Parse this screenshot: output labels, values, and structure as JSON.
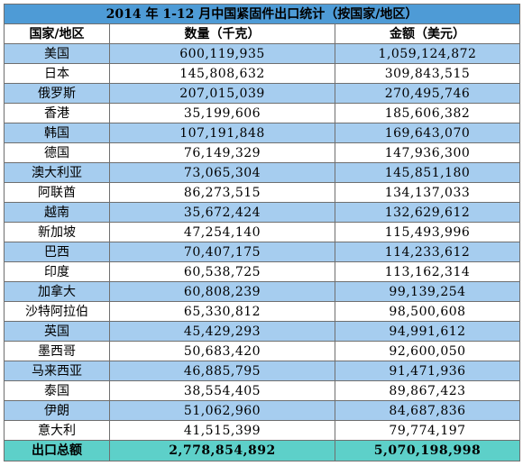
{
  "title": "2014 年 1-12 月中国紧固件出口统计（按国家/地区）",
  "headers": {
    "country": "国家/地区",
    "quantity": "数量（千克）",
    "amount": "金额（美元）"
  },
  "rows": [
    {
      "country": "美国",
      "quantity": "600,119,935",
      "amount": "1,059,124,872"
    },
    {
      "country": "日本",
      "quantity": "145,808,632",
      "amount": "309,843,515"
    },
    {
      "country": "俄罗斯",
      "quantity": "207,015,039",
      "amount": "270,495,746"
    },
    {
      "country": "香港",
      "quantity": "35,199,606",
      "amount": "185,606,382"
    },
    {
      "country": "韩国",
      "quantity": "107,191,848",
      "amount": "169,643,070"
    },
    {
      "country": "德国",
      "quantity": "76,149,329",
      "amount": "147,936,300"
    },
    {
      "country": "澳大利亚",
      "quantity": "73,065,304",
      "amount": "145,851,180"
    },
    {
      "country": "阿联酋",
      "quantity": "86,273,515",
      "amount": "134,137,033"
    },
    {
      "country": "越南",
      "quantity": "35,672,424",
      "amount": "132,629,612"
    },
    {
      "country": "新加坡",
      "quantity": "47,254,140",
      "amount": "115,493,996"
    },
    {
      "country": "巴西",
      "quantity": "70,407,175",
      "amount": "114,233,612"
    },
    {
      "country": "印度",
      "quantity": "60,538,725",
      "amount": "113,162,314"
    },
    {
      "country": "加拿大",
      "quantity": "60,808,239",
      "amount": "99,139,254"
    },
    {
      "country": "沙特阿拉伯",
      "quantity": "65,330,812",
      "amount": "98,500,608"
    },
    {
      "country": "英国",
      "quantity": "45,429,293",
      "amount": "94,991,612"
    },
    {
      "country": "墨西哥",
      "quantity": "50,683,420",
      "amount": "92,600,050"
    },
    {
      "country": "马来西亚",
      "quantity": "46,885,795",
      "amount": "91,471,936"
    },
    {
      "country": "泰国",
      "quantity": "38,554,405",
      "amount": "89,867,423"
    },
    {
      "country": "伊朗",
      "quantity": "51,062,960",
      "amount": "84,687,836"
    },
    {
      "country": "意大利",
      "quantity": "41,515,399",
      "amount": "79,774,197"
    }
  ],
  "total": {
    "label": "出口总额",
    "quantity": "2,778,854,892",
    "amount": "5,070,198,998"
  },
  "colors": {
    "title_bg": "#4e9bd6",
    "alt_row_bg": "#a6cdef",
    "total_bg": "#5dd0c9",
    "border": "#6f6f6f"
  }
}
